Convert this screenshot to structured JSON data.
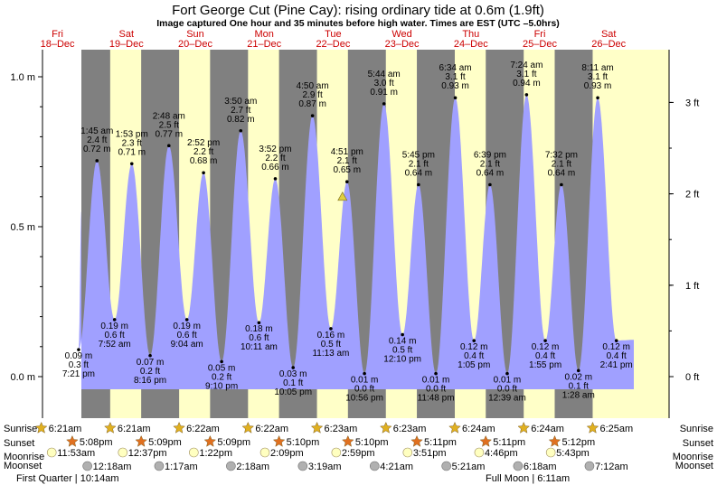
{
  "title": "Fort George Cut (Pine Cay): rising  ordinary tide at 0.6m (1.9ft)",
  "subtitle": "Image captured One hour and 35 minutes before high water. Times are EST (UTC –5.0hrs)",
  "colors": {
    "night": "#808080",
    "day": "#ffffc8",
    "tide": "#a0a0ff",
    "outside": "#ffffff",
    "star": "#e0b020",
    "sunset_star": "#e07020",
    "moon": "#ffffc0",
    "moonset": "#b0b0b0",
    "day_label": "#cc0000"
  },
  "days": [
    {
      "dow": "Fri",
      "date": "18–Dec"
    },
    {
      "dow": "Sat",
      "date": "19–Dec"
    },
    {
      "dow": "Sun",
      "date": "20–Dec"
    },
    {
      "dow": "Mon",
      "date": "21–Dec"
    },
    {
      "dow": "Tue",
      "date": "22–Dec"
    },
    {
      "dow": "Wed",
      "date": "23–Dec"
    },
    {
      "dow": "Thu",
      "date": "24–Dec"
    },
    {
      "dow": "Fri",
      "date": "25–Dec"
    },
    {
      "dow": "Sat",
      "date": "26–Dec"
    }
  ],
  "chart_data": {
    "type": "area",
    "y_left_ticks": [
      "0.0 m",
      "0.5 m",
      "1.0 m"
    ],
    "y_right_ticks": [
      "0 ft",
      "1 ft",
      "2 ft",
      "3 ft"
    ],
    "ylim_m": [
      -0.07,
      1.08
    ],
    "current_level_m": 0.6,
    "events": [
      {
        "day": 0,
        "time": "7:21 pm",
        "m": "0.09 m",
        "ft": "0.3 ft",
        "type": "low",
        "h": 0.09,
        "t": 19.35
      },
      {
        "day": 1,
        "time": "1:45 am",
        "m": "0.72 m",
        "ft": "2.4 ft",
        "type": "high",
        "h": 0.72,
        "t": 1.75
      },
      {
        "day": 1,
        "time": "7:52 am",
        "m": "0.19 m",
        "ft": "0.6 ft",
        "type": "low",
        "h": 0.19,
        "t": 7.87
      },
      {
        "day": 1,
        "time": "1:53 pm",
        "m": "0.71 m",
        "ft": "2.3 ft",
        "type": "high",
        "h": 0.71,
        "t": 13.88
      },
      {
        "day": 1,
        "time": "8:16 pm",
        "m": "0.07 m",
        "ft": "0.2 ft",
        "type": "low",
        "h": 0.07,
        "t": 20.27
      },
      {
        "day": 2,
        "time": "2:48 am",
        "m": "0.77 m",
        "ft": "2.5 ft",
        "type": "high",
        "h": 0.77,
        "t": 2.8
      },
      {
        "day": 2,
        "time": "9:04 am",
        "m": "0.19 m",
        "ft": "0.6 ft",
        "type": "low",
        "h": 0.19,
        "t": 9.07
      },
      {
        "day": 2,
        "time": "2:52 pm",
        "m": "0.68 m",
        "ft": "2.2 ft",
        "type": "high",
        "h": 0.68,
        "t": 14.87
      },
      {
        "day": 2,
        "time": "9:10 pm",
        "m": "0.05 m",
        "ft": "0.2 ft",
        "type": "low",
        "h": 0.05,
        "t": 21.17
      },
      {
        "day": 3,
        "time": "3:50 am",
        "m": "0.82 m",
        "ft": "2.7 ft",
        "type": "high",
        "h": 0.82,
        "t": 3.83
      },
      {
        "day": 3,
        "time": "10:11 am",
        "m": "0.18 m",
        "ft": "0.6 ft",
        "type": "low",
        "h": 0.18,
        "t": 10.18
      },
      {
        "day": 3,
        "time": "3:52 pm",
        "m": "0.66 m",
        "ft": "2.2 ft",
        "type": "high",
        "h": 0.66,
        "t": 15.87
      },
      {
        "day": 3,
        "time": "10:05 pm",
        "m": "0.03 m",
        "ft": "0.1 ft",
        "type": "low",
        "h": 0.03,
        "t": 22.08
      },
      {
        "day": 4,
        "time": "4:50 am",
        "m": "0.87 m",
        "ft": "2.9 ft",
        "type": "high",
        "h": 0.87,
        "t": 4.83
      },
      {
        "day": 4,
        "time": "11:13 am",
        "m": "0.16 m",
        "ft": "0.5 ft",
        "type": "low",
        "h": 0.16,
        "t": 11.22
      },
      {
        "day": 4,
        "time": "4:51 pm",
        "m": "0.65 m",
        "ft": "2.1 ft",
        "type": "high",
        "h": 0.65,
        "t": 16.85
      },
      {
        "day": 4,
        "time": "10:56 pm",
        "m": "0.01 m",
        "ft": "0.0 ft",
        "type": "low",
        "h": 0.01,
        "t": 22.93
      },
      {
        "day": 5,
        "time": "5:44 am",
        "m": "0.91 m",
        "ft": "3.0 ft",
        "type": "high",
        "h": 0.91,
        "t": 5.73
      },
      {
        "day": 5,
        "time": "12:10 pm",
        "m": "0.14 m",
        "ft": "0.5 ft",
        "type": "low",
        "h": 0.14,
        "t": 12.17
      },
      {
        "day": 5,
        "time": "5:45 pm",
        "m": "0.64 m",
        "ft": "2.1 ft",
        "type": "high",
        "h": 0.64,
        "t": 17.75
      },
      {
        "day": 5,
        "time": "11:48 pm",
        "m": "0.01 m",
        "ft": "0.0 ft",
        "type": "low",
        "h": 0.01,
        "t": 23.8
      },
      {
        "day": 6,
        "time": "6:34 am",
        "m": "0.93 m",
        "ft": "3.1 ft",
        "type": "high",
        "h": 0.93,
        "t": 6.57
      },
      {
        "day": 6,
        "time": "1:05 pm",
        "m": "0.12 m",
        "ft": "0.4 ft",
        "type": "low",
        "h": 0.12,
        "t": 13.08
      },
      {
        "day": 6,
        "time": "6:39 pm",
        "m": "0.64 m",
        "ft": "2.1 ft",
        "type": "high",
        "h": 0.64,
        "t": 18.65
      },
      {
        "day": 7,
        "time": "12:39 am",
        "m": "0.01 m",
        "ft": "0.0 ft",
        "type": "low",
        "h": 0.01,
        "t": 0.65
      },
      {
        "day": 7,
        "time": "7:24 am",
        "m": "0.94 m",
        "ft": "3.1 ft",
        "type": "high",
        "h": 0.94,
        "t": 7.4
      },
      {
        "day": 7,
        "time": "1:55 pm",
        "m": "0.12 m",
        "ft": "0.4 ft",
        "type": "low",
        "h": 0.12,
        "t": 13.92
      },
      {
        "day": 7,
        "time": "7:32 pm",
        "m": "0.64 m",
        "ft": "2.1 ft",
        "type": "high",
        "h": 0.64,
        "t": 19.53
      },
      {
        "day": 8,
        "time": "1:28 am",
        "m": "0.02 m",
        "ft": "0.1 ft",
        "type": "low",
        "h": 0.02,
        "t": 1.47
      },
      {
        "day": 8,
        "time": "8:11 am",
        "m": "0.93 m",
        "ft": "3.1 ft",
        "type": "high",
        "h": 0.93,
        "t": 8.18
      },
      {
        "day": 8,
        "time": "2:41 pm",
        "m": "0.12 m",
        "ft": "0.4 ft",
        "type": "low",
        "h": 0.12,
        "t": 14.68
      }
    ]
  },
  "rows": {
    "sunrise_label": "Sunrise",
    "sunset_label": "Sunset",
    "moonrise_label": "Moonrise",
    "moonset_label": "Moonset",
    "sunrise": [
      {
        "day": 0,
        "t": 6.35,
        "text": "6:21am"
      },
      {
        "day": 1,
        "t": 6.35,
        "text": "6:21am"
      },
      {
        "day": 2,
        "t": 6.37,
        "text": "6:22am"
      },
      {
        "day": 3,
        "t": 6.37,
        "text": "6:22am"
      },
      {
        "day": 4,
        "t": 6.38,
        "text": "6:23am"
      },
      {
        "day": 5,
        "t": 6.38,
        "text": "6:23am"
      },
      {
        "day": 6,
        "t": 6.4,
        "text": "6:24am"
      },
      {
        "day": 7,
        "t": 6.4,
        "text": "6:24am"
      },
      {
        "day": 8,
        "t": 6.42,
        "text": "6:25am"
      }
    ],
    "sunset": [
      {
        "day": 0,
        "t": 17.13,
        "text": "5:08pm"
      },
      {
        "day": 1,
        "t": 17.15,
        "text": "5:09pm"
      },
      {
        "day": 2,
        "t": 17.15,
        "text": "5:09pm"
      },
      {
        "day": 3,
        "t": 17.17,
        "text": "5:10pm"
      },
      {
        "day": 4,
        "t": 17.17,
        "text": "5:10pm"
      },
      {
        "day": 5,
        "t": 17.18,
        "text": "5:11pm"
      },
      {
        "day": 6,
        "t": 17.18,
        "text": "5:11pm"
      },
      {
        "day": 7,
        "t": 17.2,
        "text": "5:12pm"
      }
    ],
    "moonrise": [
      {
        "day": 0,
        "t": 11.88,
        "text": "11:53am"
      },
      {
        "day": 1,
        "t": 12.62,
        "text": "12:37pm"
      },
      {
        "day": 2,
        "t": 13.37,
        "text": "1:22pm"
      },
      {
        "day": 3,
        "t": 14.15,
        "text": "2:09pm"
      },
      {
        "day": 4,
        "t": 14.98,
        "text": "2:59pm"
      },
      {
        "day": 5,
        "t": 15.85,
        "text": "3:51pm"
      },
      {
        "day": 6,
        "t": 16.77,
        "text": "4:46pm"
      },
      {
        "day": 7,
        "t": 17.72,
        "text": "5:43pm"
      }
    ],
    "moonset": [
      {
        "day": 1,
        "t": 0.3,
        "text": "12:18am"
      },
      {
        "day": 2,
        "t": 1.28,
        "text": "1:17am"
      },
      {
        "day": 3,
        "t": 2.3,
        "text": "2:18am"
      },
      {
        "day": 4,
        "t": 3.32,
        "text": "3:19am"
      },
      {
        "day": 5,
        "t": 4.35,
        "text": "4:21am"
      },
      {
        "day": 6,
        "t": 5.35,
        "text": "5:21am"
      },
      {
        "day": 7,
        "t": 6.3,
        "text": "6:18am"
      },
      {
        "day": 8,
        "t": 7.2,
        "text": "7:12am"
      }
    ],
    "first_quarter": "First Quarter | 10:14am",
    "full_moon": "Full Moon | 6:11am"
  }
}
